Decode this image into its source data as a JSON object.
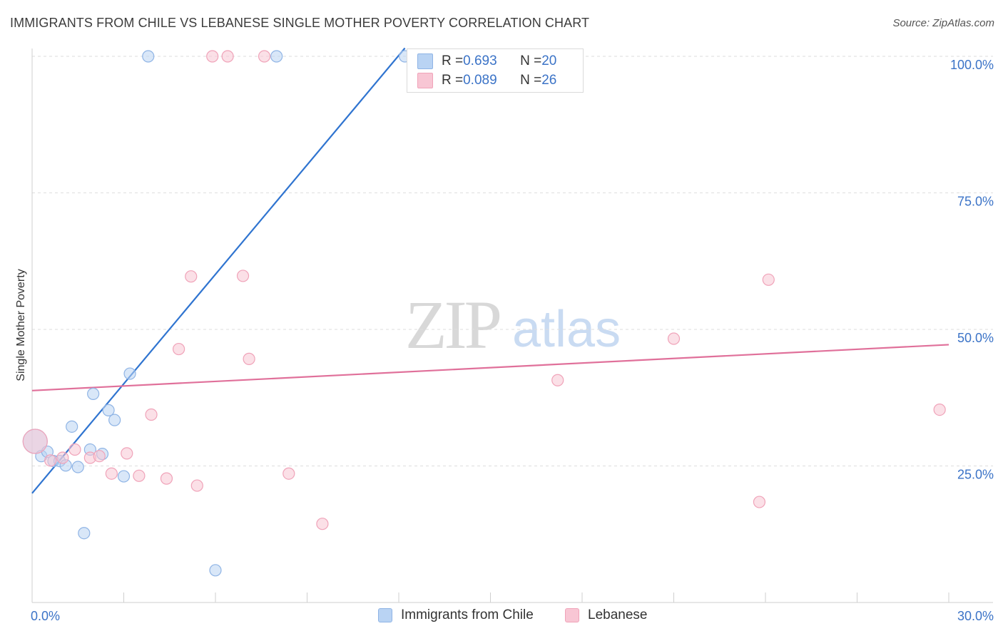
{
  "header": {
    "title": "IMMIGRANTS FROM CHILE VS LEBANESE SINGLE MOTHER POVERTY CORRELATION CHART",
    "source": "Source: ZipAtlas.com"
  },
  "watermark": {
    "zip": "ZIP",
    "atlas": "atlas"
  },
  "colors": {
    "blue_fill": "#b9d3f3",
    "blue_stroke": "#8fb4e5",
    "blue_line": "#2f74d0",
    "pink_fill": "#f8c6d4",
    "pink_stroke": "#f0a3b9",
    "pink_line": "#e0709a",
    "axis_text": "#3b73c7",
    "grid": "#dedede"
  },
  "stats_legend": [
    {
      "r_label": "R = ",
      "r_value": "0.693",
      "n_label": "N = ",
      "n_value": "20",
      "series": "blue"
    },
    {
      "r_label": "R = ",
      "r_value": "0.089",
      "n_label": "N = ",
      "n_value": "26",
      "series": "pink"
    }
  ],
  "chart_data": {
    "type": "scatter",
    "title": "IMMIGRANTS FROM CHILE VS LEBANESE SINGLE MOTHER POVERTY CORRELATION CHART",
    "xlabel": "",
    "ylabel": "Single Mother Poverty",
    "xlim": [
      0,
      30
    ],
    "ylim": [
      0,
      105
    ],
    "x_tick_labels": [
      {
        "value": 0,
        "label": "0.0%"
      },
      {
        "value": 30,
        "label": "30.0%"
      }
    ],
    "y_tick_labels": [
      {
        "value": 25,
        "label": "25.0%"
      },
      {
        "value": 50,
        "label": "50.0%"
      },
      {
        "value": 75,
        "label": "75.0%"
      },
      {
        "value": 100,
        "label": "100.0%"
      }
    ],
    "x_minor_ticks": [
      0,
      3,
      6,
      9,
      12,
      15,
      18,
      21,
      24,
      27,
      30
    ],
    "y_gridlines": [
      25,
      50,
      75,
      100
    ],
    "legend_position": "bottom-center",
    "series": [
      {
        "name": "Immigrants from Chile",
        "color": "blue",
        "trend": {
          "x0": 0,
          "y0": 20.0,
          "x1": 12.2,
          "y1": 101.5
        },
        "points": [
          {
            "x": 0.1,
            "y": 29.5,
            "big": true
          },
          {
            "x": 0.3,
            "y": 26.8
          },
          {
            "x": 0.5,
            "y": 27.6
          },
          {
            "x": 0.7,
            "y": 25.9
          },
          {
            "x": 0.9,
            "y": 25.9
          },
          {
            "x": 1.1,
            "y": 25.1
          },
          {
            "x": 1.3,
            "y": 32.2
          },
          {
            "x": 1.5,
            "y": 24.8
          },
          {
            "x": 1.7,
            "y": 12.7
          },
          {
            "x": 1.9,
            "y": 28.0
          },
          {
            "x": 2.0,
            "y": 38.2
          },
          {
            "x": 2.3,
            "y": 27.2
          },
          {
            "x": 2.5,
            "y": 35.2
          },
          {
            "x": 2.7,
            "y": 33.4
          },
          {
            "x": 3.0,
            "y": 23.1
          },
          {
            "x": 3.2,
            "y": 41.9
          },
          {
            "x": 3.8,
            "y": 100.0
          },
          {
            "x": 6.0,
            "y": 5.9
          },
          {
            "x": 8.0,
            "y": 100.0
          },
          {
            "x": 12.2,
            "y": 100.0
          }
        ]
      },
      {
        "name": "Lebanese",
        "color": "pink",
        "trend": {
          "x0": 0,
          "y0": 38.8,
          "x1": 30,
          "y1": 47.2
        },
        "points": [
          {
            "x": 0.1,
            "y": 29.5,
            "big": true
          },
          {
            "x": 0.6,
            "y": 26.0
          },
          {
            "x": 1.0,
            "y": 26.5
          },
          {
            "x": 1.4,
            "y": 28.0
          },
          {
            "x": 1.9,
            "y": 26.5
          },
          {
            "x": 2.2,
            "y": 26.8
          },
          {
            "x": 2.6,
            "y": 23.6
          },
          {
            "x": 3.1,
            "y": 27.3
          },
          {
            "x": 3.5,
            "y": 23.2
          },
          {
            "x": 3.9,
            "y": 34.4
          },
          {
            "x": 4.4,
            "y": 22.7
          },
          {
            "x": 4.8,
            "y": 46.4
          },
          {
            "x": 5.2,
            "y": 59.7
          },
          {
            "x": 5.4,
            "y": 21.4
          },
          {
            "x": 5.9,
            "y": 100.0
          },
          {
            "x": 6.4,
            "y": 100.0
          },
          {
            "x": 6.9,
            "y": 59.8
          },
          {
            "x": 7.1,
            "y": 44.6
          },
          {
            "x": 7.6,
            "y": 100.0
          },
          {
            "x": 8.4,
            "y": 23.6
          },
          {
            "x": 9.5,
            "y": 14.4
          },
          {
            "x": 17.2,
            "y": 40.7
          },
          {
            "x": 21.0,
            "y": 48.3
          },
          {
            "x": 23.8,
            "y": 18.4
          },
          {
            "x": 24.1,
            "y": 59.1
          },
          {
            "x": 29.7,
            "y": 35.3
          }
        ]
      }
    ]
  }
}
